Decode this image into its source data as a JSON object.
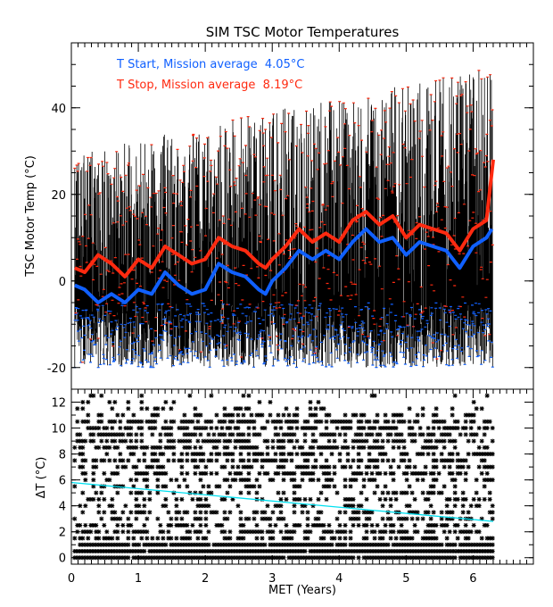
{
  "chart_data": [
    {
      "type": "line",
      "title": "SIM TSC Motor Temperatures",
      "xlabel": "",
      "ylabel": "TSC Motor Temp (°C)",
      "xlim": [
        0,
        6.9
      ],
      "ylim": [
        -25,
        55
      ],
      "yticks": [
        -20,
        0,
        20,
        40
      ],
      "legend": [
        {
          "text": "T Start, Mission average  4.05°C",
          "color": "#1060ff"
        },
        {
          "text": "T Stop, Mission average  8.19°C",
          "color": "#ff2a10"
        }
      ],
      "legend_position": "top-left",
      "raw_range": {
        "x": [
          0.05,
          6.3
        ],
        "y_min": -20,
        "y_max_start": 30,
        "y_max_end": 50
      },
      "series": [
        {
          "name": "T Start smoothed",
          "color": "#1060ff",
          "x": [
            0.05,
            0.2,
            0.4,
            0.6,
            0.8,
            1.0,
            1.2,
            1.4,
            1.6,
            1.8,
            2.0,
            2.2,
            2.4,
            2.6,
            2.8,
            2.9,
            3.0,
            3.2,
            3.4,
            3.6,
            3.8,
            4.0,
            4.2,
            4.4,
            4.6,
            4.8,
            5.0,
            5.2,
            5.4,
            5.6,
            5.8,
            6.0,
            6.2,
            6.28
          ],
          "y": [
            -1,
            -2,
            -5,
            -3,
            -5,
            -2,
            -3,
            2,
            -1,
            -3,
            -2,
            4,
            2,
            1,
            -2,
            -3,
            0,
            3,
            7,
            5,
            7,
            5,
            9,
            12,
            9,
            10,
            6,
            9,
            8,
            7,
            3,
            8,
            10,
            12
          ]
        },
        {
          "name": "T Stop smoothed",
          "color": "#ff2a10",
          "x": [
            0.05,
            0.2,
            0.4,
            0.6,
            0.8,
            1.0,
            1.2,
            1.4,
            1.6,
            1.8,
            2.0,
            2.2,
            2.4,
            2.6,
            2.8,
            2.9,
            3.0,
            3.2,
            3.4,
            3.6,
            3.8,
            4.0,
            4.2,
            4.4,
            4.6,
            4.8,
            5.0,
            5.2,
            5.4,
            5.6,
            5.8,
            6.0,
            6.2,
            6.3
          ],
          "y": [
            3,
            2,
            6,
            4,
            1,
            5,
            3,
            8,
            6,
            4,
            5,
            10,
            8,
            7,
            4,
            3,
            5,
            8,
            12,
            9,
            11,
            9,
            14,
            16,
            13,
            15,
            10,
            13,
            12,
            11,
            7,
            12,
            14,
            28
          ]
        }
      ]
    },
    {
      "type": "scatter",
      "xlabel": "MET (Years)",
      "ylabel": "ΔT (°C)",
      "xlim": [
        0,
        6.9
      ],
      "ylim": [
        -0.5,
        13
      ],
      "xticks": [
        0,
        1,
        2,
        3,
        4,
        5,
        6
      ],
      "yticks": [
        0,
        2,
        4,
        6,
        8,
        10,
        12
      ],
      "levels": [
        0,
        0.5,
        1,
        1.5,
        2,
        2.5,
        3,
        3.5,
        4,
        4.5,
        5,
        5.5,
        6,
        6.5,
        7,
        7.5,
        8,
        8.5,
        9,
        9.5,
        10,
        10.5,
        11,
        11.5,
        12,
        12.5
      ],
      "level_density": [
        0.95,
        0.98,
        0.95,
        0.5,
        0.5,
        0.5,
        0.35,
        0.35,
        0.3,
        0.35,
        0.3,
        0.3,
        0.4,
        0.5,
        0.45,
        0.45,
        0.45,
        0.55,
        0.55,
        0.6,
        0.6,
        0.6,
        0.35,
        0.2,
        0.1,
        0.05
      ],
      "x_range": [
        0.05,
        6.3
      ],
      "fit": {
        "color": "#00e0f0",
        "x": [
          0,
          6.3
        ],
        "y": [
          5.8,
          2.8
        ]
      }
    }
  ]
}
